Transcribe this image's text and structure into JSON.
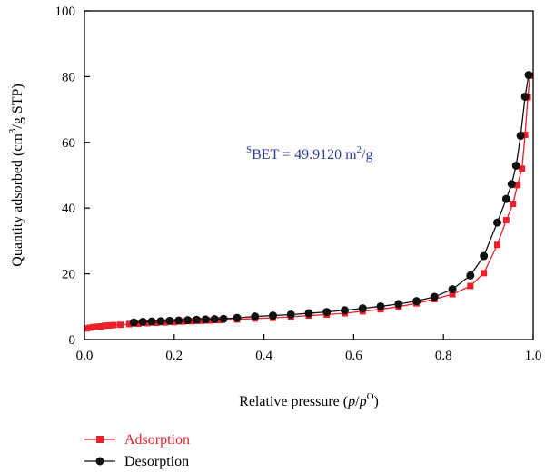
{
  "chart_data": {
    "type": "line",
    "xlabel": "Relative pressure (p/p⁰)",
    "xlabel_parts": {
      "prefix": "Relative pressure (",
      "p1": "p",
      "slash": "/",
      "p2": "p",
      "sup": "O",
      "suffix": ")"
    },
    "ylabel": "Quantity adsorbed (cm³/g STP)",
    "ylabel_parts": {
      "prefix": "Quantity adsorbed (cm",
      "sup": "3",
      "suffix": "/g STP)"
    },
    "xlim": [
      0,
      1.0
    ],
    "ylim": [
      0,
      100
    ],
    "x_ticks": [
      "0.0",
      "0.2",
      "0.4",
      "0.6",
      "0.8",
      "1.0"
    ],
    "y_ticks": [
      "0",
      "20",
      "40",
      "60",
      "80",
      "100"
    ],
    "grid": false,
    "legend_position": "bottom-left outside",
    "annotation": {
      "text": "SBET = 49.9120 m2/g",
      "prefix_sup": "S",
      "body": "BET = 49.9120 m",
      "sup": "2",
      "suffix": "/g",
      "color": "#2a3f9a"
    },
    "series": [
      {
        "name": "Adsorption",
        "color": "#e8212a",
        "marker": "square",
        "x": [
          0.005,
          0.012,
          0.02,
          0.028,
          0.036,
          0.045,
          0.055,
          0.065,
          0.08,
          0.1,
          0.12,
          0.14,
          0.16,
          0.18,
          0.2,
          0.22,
          0.24,
          0.26,
          0.28,
          0.3,
          0.34,
          0.38,
          0.42,
          0.46,
          0.5,
          0.54,
          0.58,
          0.62,
          0.66,
          0.7,
          0.74,
          0.78,
          0.82,
          0.86,
          0.89,
          0.92,
          0.94,
          0.955,
          0.965,
          0.975,
          0.982,
          0.988,
          0.993
        ],
        "y": [
          3.4,
          3.6,
          3.8,
          3.9,
          4.0,
          4.2,
          4.3,
          4.4,
          4.5,
          4.7,
          4.8,
          5.0,
          5.1,
          5.2,
          5.3,
          5.5,
          5.6,
          5.7,
          5.8,
          5.9,
          6.1,
          6.4,
          6.6,
          6.9,
          7.3,
          7.6,
          8.0,
          8.6,
          9.2,
          10.0,
          11.0,
          12.3,
          13.8,
          16.3,
          20.2,
          28.8,
          36.3,
          41.3,
          47.0,
          52.0,
          62.3,
          73.7,
          80.3
        ]
      },
      {
        "name": "Desorption",
        "color": "#111111",
        "marker": "circle",
        "x": [
          0.11,
          0.13,
          0.15,
          0.17,
          0.19,
          0.21,
          0.23,
          0.25,
          0.27,
          0.29,
          0.31,
          0.34,
          0.38,
          0.42,
          0.46,
          0.5,
          0.54,
          0.58,
          0.62,
          0.66,
          0.7,
          0.74,
          0.78,
          0.82,
          0.86,
          0.89,
          0.92,
          0.94,
          0.952,
          0.962,
          0.972,
          0.982,
          0.99
        ],
        "y": [
          5.2,
          5.4,
          5.5,
          5.6,
          5.7,
          5.8,
          5.9,
          6.0,
          6.1,
          6.2,
          6.3,
          6.6,
          7.0,
          7.3,
          7.6,
          8.0,
          8.4,
          8.9,
          9.5,
          10.1,
          10.8,
          11.7,
          13.0,
          15.3,
          19.5,
          25.4,
          35.6,
          42.8,
          47.3,
          52.9,
          62.0,
          73.9,
          80.5
        ]
      }
    ]
  }
}
